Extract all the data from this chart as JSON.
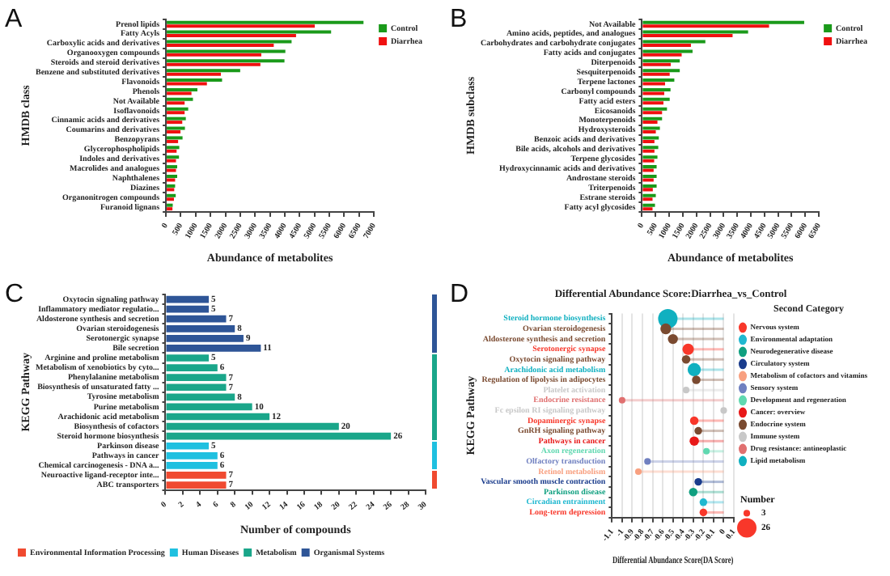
{
  "chart_data": [
    {
      "type": "bar",
      "orientation": "horizontal",
      "annotations": [
        "A"
      ],
      "xlabel": "Abundance of metabolites",
      "ylabel": "HMDB class",
      "legend": "top right",
      "xlim": [
        0,
        7000
      ],
      "xticks": [
        0,
        500,
        1000,
        1500,
        2000,
        2500,
        3000,
        3500,
        4000,
        4500,
        5000,
        5500,
        6000,
        6500,
        7000
      ],
      "grid": false,
      "categories": [
        "Prenol lipids",
        "Fatty Acyls",
        "Carboxylic acids and derivatives",
        "Organooxygen compounds",
        "Steroids and steroid derivatives",
        "Benzene and substituted derivatives",
        "Flavonoids",
        "Phenols",
        "Not Available",
        "Isoflavonoids",
        "Cinnamic acids and derivatives",
        "Coumarins and derivatives",
        "Benzopyrans",
        "Glycerophospholipids",
        "Indoles and derivatives",
        "Macrolides and analogues",
        "Naphthalenes",
        "Diazines",
        "Organonitrogen compounds",
        "Furanoid lignans"
      ],
      "series": [
        {
          "name": "Control",
          "color": "#1a9a1a",
          "values": [
            6650,
            5560,
            4230,
            4020,
            3990,
            2500,
            1890,
            1060,
            910,
            750,
            670,
            640,
            560,
            450,
            440,
            380,
            380,
            310,
            330,
            230
          ]
        },
        {
          "name": "Diarrhea",
          "color": "#f01010",
          "values": [
            5010,
            4380,
            3630,
            3210,
            3180,
            1850,
            1380,
            860,
            630,
            630,
            550,
            490,
            410,
            360,
            340,
            340,
            310,
            280,
            270,
            220
          ]
        }
      ]
    },
    {
      "type": "bar",
      "orientation": "horizontal",
      "annotations": [
        "B"
      ],
      "xlabel": "Abundance of metabolites",
      "ylabel": "HMDB subclass",
      "legend": "top right",
      "xlim": [
        0,
        6500
      ],
      "xticks": [
        0,
        500,
        1000,
        1500,
        2000,
        2500,
        3000,
        3500,
        4000,
        4500,
        5000,
        5500,
        6000,
        6500
      ],
      "grid": false,
      "categories": [
        "Not Available",
        "Amino acids, peptides, and analogues",
        "Carbohydrates and carbohydrate conjugates",
        "Fatty acids and conjugates",
        "Diterpenoids",
        "Sesquiterpenoids",
        "Terpene lactones",
        "Carbonyl compounds",
        "Fatty acid esters",
        "Eicosanoids",
        "Monoterpenoids",
        "Hydroxysteroids",
        "Benzoic acids and derivatives",
        "Bile acids, alcohols and derivatives",
        "Terpene glycosides",
        "Hydroxycinnamic acids and derivatives",
        "Androstane steroids",
        "Triterpenoids",
        "Estrane steroids",
        "Fatty acyl glycosides"
      ],
      "series": [
        {
          "name": "Control",
          "color": "#1a9a1a",
          "values": [
            5960,
            3900,
            2330,
            1860,
            1390,
            1390,
            1190,
            1050,
            1020,
            920,
            740,
            660,
            620,
            600,
            570,
            540,
            540,
            540,
            510,
            480
          ]
        },
        {
          "name": "Diarrhea",
          "color": "#f01010",
          "values": [
            4670,
            3330,
            1800,
            1460,
            1060,
            1020,
            850,
            820,
            790,
            740,
            570,
            510,
            460,
            460,
            450,
            430,
            430,
            400,
            390,
            390
          ]
        }
      ]
    },
    {
      "type": "bar",
      "orientation": "horizontal",
      "stacked": true,
      "data_labels": true,
      "annotations": [
        "C"
      ],
      "xlabel": "Number of compounds",
      "ylabel": "KEGG Pathway",
      "legend": "bottom",
      "xlim": [
        0,
        30
      ],
      "xticks": [
        0,
        2,
        4,
        6,
        8,
        10,
        12,
        14,
        16,
        18,
        20,
        22,
        24,
        26,
        28,
        30
      ],
      "grid": false,
      "categories": [
        "Oxytocin signaling pathway",
        "Inflammatory mediator regulatio...",
        "Aldosterone synthesis and secretion",
        "Ovarian steroidogenesis",
        "Serotonergic synapse",
        "Bile secretion",
        "Arginine and proline metabolism",
        "Metabolism of xenobiotics by cyto...",
        "Phenylalanine metabolism",
        "Biosynthesis of unsaturated fatty ...",
        "Tyrosine metabolism",
        "Purine metabolism",
        "Arachidonic acid metabolism",
        "Biosynthesis of cofactors",
        "Steroid hormone biosynthesis",
        "Parkinson disease",
        "Pathways in cancer",
        "Chemical carcinogenesis - DNA a...",
        "Neuroactive ligand-receptor inte...",
        "ABC transporters"
      ],
      "series": [
        {
          "name": "Environmental Information Processing",
          "color": "#f04a30",
          "values": [
            null,
            null,
            null,
            null,
            null,
            null,
            null,
            null,
            null,
            null,
            null,
            null,
            null,
            null,
            null,
            null,
            null,
            null,
            7,
            7
          ]
        },
        {
          "name": "Human Diseases",
          "color": "#1fc0e0",
          "values": [
            null,
            null,
            null,
            null,
            null,
            null,
            null,
            null,
            null,
            null,
            null,
            null,
            null,
            null,
            null,
            5,
            6,
            6,
            null,
            null
          ]
        },
        {
          "name": "Metabolism",
          "color": "#1aa68a",
          "values": [
            null,
            null,
            null,
            null,
            null,
            null,
            5,
            6,
            7,
            7,
            8,
            10,
            12,
            20,
            26,
            null,
            null,
            null,
            null,
            null
          ]
        },
        {
          "name": "Organismal Systems",
          "color": "#2e5597",
          "values": [
            5,
            5,
            7,
            8,
            9,
            11,
            null,
            null,
            null,
            null,
            null,
            null,
            null,
            null,
            null,
            null,
            null,
            null,
            null,
            null
          ]
        }
      ]
    },
    {
      "type": "lollipop",
      "orientation": "horizontal",
      "title": "Differential Abundance Score:Diarrhea_vs_Control",
      "annotations": [
        "D",
        "Number"
      ],
      "xlabel": "Differential Abundance Score(DA Score)",
      "ylabel": "KEGG Pathway",
      "legend": "top right",
      "legend_title": "Second Category",
      "marker": "circle",
      "xlim": [
        -1.1,
        0.1
      ],
      "xticks": [
        -1.1,
        -1,
        -0.9,
        -0.8,
        -0.7,
        -0.6,
        -0.5,
        -0.4,
        -0.3,
        -0.2,
        -0.1,
        0,
        0.1
      ],
      "grid": "x",
      "size_legend": [
        3,
        26
      ],
      "categories": [
        "Steroid hormone biosynthesis",
        "Ovarian steroidogenesis",
        "Aldosterone synthesis and secretion",
        "Serotonergic synapse",
        "Oxytocin signaling pathway",
        "Arachidonic acid metabolism",
        "Regulation of lipolysis in adipocytes",
        "Platelet activation",
        "Endocrine resistance",
        "Fc epsilon RI signaling pathway",
        "Dopaminergic synapse",
        "GnRH signaling pathway",
        "Pathways in cancer",
        "Axon regeneration",
        "Olfactory transduction",
        "Retinol metabolism",
        "Vascular smooth muscle contraction",
        "Parkinson disease",
        "Circadian entrainment",
        "Long-term depression"
      ],
      "series": [
        {
          "name": "Nervous system",
          "color": "#f8372a",
          "values": [
            null,
            null,
            null,
            -0.35,
            null,
            null,
            null,
            null,
            null,
            null,
            -0.29,
            null,
            null,
            null,
            null,
            null,
            null,
            null,
            null,
            -0.2
          ],
          "sizes": [
            null,
            null,
            null,
            9,
            null,
            null,
            null,
            null,
            null,
            null,
            5,
            null,
            null,
            null,
            null,
            null,
            null,
            null,
            null,
            4
          ]
        },
        {
          "name": "Environmental adaptation",
          "color": "#20b8d0",
          "values": [
            null,
            null,
            null,
            null,
            null,
            null,
            null,
            null,
            null,
            null,
            null,
            null,
            null,
            null,
            null,
            null,
            null,
            null,
            -0.2,
            null
          ],
          "sizes": [
            null,
            null,
            null,
            null,
            null,
            null,
            null,
            null,
            null,
            null,
            null,
            null,
            null,
            null,
            null,
            null,
            null,
            null,
            4,
            null
          ]
        },
        {
          "name": "Neurodegenerative disease",
          "color": "#10a080",
          "values": [
            null,
            null,
            null,
            null,
            null,
            null,
            null,
            null,
            null,
            null,
            null,
            null,
            null,
            null,
            null,
            null,
            null,
            -0.3,
            null,
            null
          ],
          "sizes": [
            null,
            null,
            null,
            null,
            null,
            null,
            null,
            null,
            null,
            null,
            null,
            null,
            null,
            null,
            null,
            null,
            null,
            5,
            null,
            null
          ]
        },
        {
          "name": "Circulatory system",
          "color": "#1a3c8c",
          "values": [
            null,
            null,
            null,
            null,
            null,
            null,
            null,
            null,
            null,
            null,
            null,
            null,
            null,
            null,
            null,
            null,
            -0.25,
            null,
            null,
            null
          ],
          "sizes": [
            null,
            null,
            null,
            null,
            null,
            null,
            null,
            null,
            null,
            null,
            null,
            null,
            null,
            null,
            null,
            null,
            4,
            null,
            null,
            null
          ]
        },
        {
          "name": "Metabolism of cofactors and vitamins",
          "color": "#f8a080",
          "values": [
            null,
            null,
            null,
            null,
            null,
            null,
            null,
            null,
            null,
            null,
            null,
            null,
            null,
            null,
            null,
            -0.84,
            null,
            null,
            null,
            null
          ],
          "sizes": [
            null,
            null,
            null,
            null,
            null,
            null,
            null,
            null,
            null,
            null,
            null,
            null,
            null,
            null,
            null,
            3,
            null,
            null,
            null,
            null
          ]
        },
        {
          "name": "Sensory system",
          "color": "#7080c0",
          "values": [
            null,
            null,
            null,
            null,
            null,
            null,
            null,
            null,
            null,
            null,
            null,
            null,
            null,
            null,
            -0.75,
            null,
            null,
            null,
            null,
            null
          ],
          "sizes": [
            null,
            null,
            null,
            null,
            null,
            null,
            null,
            null,
            null,
            null,
            null,
            null,
            null,
            null,
            3,
            null,
            null,
            null,
            null,
            null
          ]
        },
        {
          "name": "Development and regeneration",
          "color": "#60d8b0",
          "values": [
            null,
            null,
            null,
            null,
            null,
            null,
            null,
            null,
            null,
            null,
            null,
            null,
            null,
            -0.17,
            null,
            null,
            null,
            null,
            null,
            null
          ],
          "sizes": [
            null,
            null,
            null,
            null,
            null,
            null,
            null,
            null,
            null,
            null,
            null,
            null,
            null,
            3,
            null,
            null,
            null,
            null,
            null,
            null
          ]
        },
        {
          "name": "Cancer: overview",
          "color": "#e81818",
          "values": [
            null,
            null,
            null,
            null,
            null,
            null,
            null,
            null,
            null,
            null,
            null,
            null,
            -0.29,
            null,
            null,
            null,
            null,
            null,
            null,
            null
          ],
          "sizes": [
            null,
            null,
            null,
            null,
            null,
            null,
            null,
            null,
            null,
            null,
            null,
            null,
            6,
            null,
            null,
            null,
            null,
            null,
            null,
            null
          ]
        },
        {
          "name": "Endocrine system",
          "color": "#7a4a30",
          "values": [
            null,
            -0.57,
            -0.5,
            null,
            -0.37,
            null,
            -0.27,
            null,
            null,
            null,
            null,
            -0.25,
            null,
            null,
            null,
            null,
            null,
            null,
            null,
            null
          ],
          "sizes": [
            null,
            8,
            7,
            null,
            5,
            null,
            5,
            null,
            null,
            null,
            null,
            4,
            null,
            null,
            null,
            null,
            null,
            null,
            null,
            null
          ]
        },
        {
          "name": "Immune system",
          "color": "#c8c8c8",
          "values": [
            null,
            null,
            null,
            null,
            null,
            null,
            null,
            -0.37,
            null,
            0,
            null,
            null,
            null,
            null,
            null,
            null,
            null,
            null,
            null,
            null
          ],
          "sizes": [
            null,
            null,
            null,
            null,
            null,
            null,
            null,
            3,
            null,
            3,
            null,
            null,
            null,
            null,
            null,
            null,
            null,
            null,
            null,
            null
          ]
        },
        {
          "name": "Drug resistance: antineoplastic",
          "color": "#e07070",
          "values": [
            null,
            null,
            null,
            null,
            null,
            null,
            null,
            null,
            -1,
            null,
            null,
            null,
            null,
            null,
            null,
            null,
            null,
            null,
            null,
            null
          ],
          "sizes": [
            null,
            null,
            null,
            null,
            null,
            null,
            null,
            null,
            3,
            null,
            null,
            null,
            null,
            null,
            null,
            null,
            null,
            null,
            null,
            null
          ]
        },
        {
          "name": "Lipid metabolism",
          "color": "#10b0c0",
          "values": [
            -0.55,
            null,
            null,
            null,
            null,
            -0.29,
            null,
            null,
            null,
            null,
            null,
            null,
            null,
            null,
            null,
            null,
            null,
            null,
            null,
            null
          ],
          "sizes": [
            26,
            null,
            null,
            null,
            null,
            12,
            null,
            null,
            null,
            null,
            null,
            null,
            null,
            null,
            null,
            null,
            null,
            null,
            null,
            null
          ]
        }
      ]
    }
  ]
}
